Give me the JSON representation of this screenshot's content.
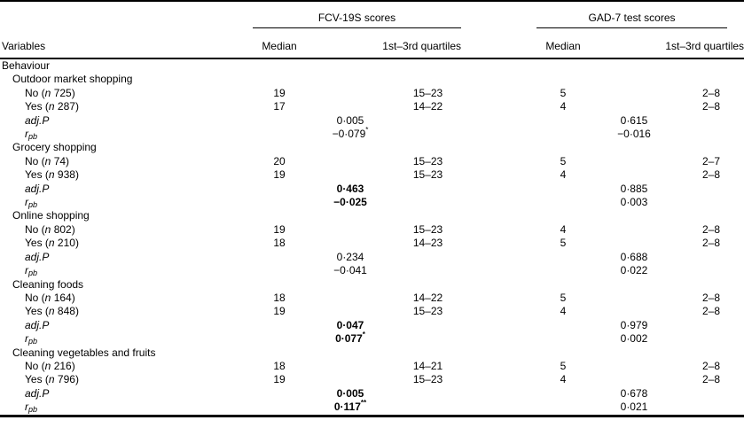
{
  "header": {
    "variables": "Variables",
    "fcv_label": "FCV-19S scores",
    "gad_label": "GAD-7 test scores",
    "median": "Median",
    "quartiles": "1st–3rd quartiles"
  },
  "section_title": "Behaviour",
  "stat_labels": {
    "n_label": "n",
    "adjp": "adj.P",
    "r": "r",
    "r_sub": "pb"
  },
  "sections": [
    {
      "title": "Outdoor market shopping",
      "rows": [
        {
          "answer": "No",
          "n": "725",
          "fcv_median": "19",
          "fcv_quartiles": "15–23",
          "gad_median": "5",
          "gad_quartiles": "2–8"
        },
        {
          "answer": "Yes",
          "n": "287",
          "fcv_median": "17",
          "fcv_quartiles": "14–22",
          "gad_median": "4",
          "gad_quartiles": "2–8"
        }
      ],
      "adjp": {
        "fcv": "0·005",
        "fcv_sup": "",
        "fcv_bold": false,
        "gad": "0·615",
        "gad_sup": ""
      },
      "rpb": {
        "fcv": "−0·079",
        "fcv_sup": "*",
        "fcv_bold": false,
        "gad": "−0·016",
        "gad_sup": ""
      }
    },
    {
      "title": "Grocery shopping",
      "rows": [
        {
          "answer": "No",
          "n": "74",
          "fcv_median": "20",
          "fcv_quartiles": "15–23",
          "gad_median": "5",
          "gad_quartiles": "2–7"
        },
        {
          "answer": "Yes",
          "n": "938",
          "fcv_median": "19",
          "fcv_quartiles": "15–23",
          "gad_median": "4",
          "gad_quartiles": "2–8"
        }
      ],
      "adjp": {
        "fcv": "0·463",
        "fcv_sup": "",
        "fcv_bold": true,
        "gad": "0·885",
        "gad_sup": ""
      },
      "rpb": {
        "fcv": "−0·025",
        "fcv_sup": "",
        "fcv_bold": true,
        "gad": "0·003",
        "gad_sup": ""
      }
    },
    {
      "title": "Online shopping",
      "rows": [
        {
          "answer": "No",
          "n": "802",
          "fcv_median": "19",
          "fcv_quartiles": "15–23",
          "gad_median": "4",
          "gad_quartiles": "2–8"
        },
        {
          "answer": "Yes",
          "n": "210",
          "fcv_median": "18",
          "fcv_quartiles": "14–23",
          "gad_median": "5",
          "gad_quartiles": "2–8"
        }
      ],
      "adjp": {
        "fcv": "0·234",
        "fcv_sup": "",
        "fcv_bold": false,
        "gad": "0·688",
        "gad_sup": ""
      },
      "rpb": {
        "fcv": "−0·041",
        "fcv_sup": "",
        "fcv_bold": false,
        "gad": "0·022",
        "gad_sup": ""
      }
    },
    {
      "title": "Cleaning foods",
      "rows": [
        {
          "answer": "No",
          "n": "164",
          "fcv_median": "18",
          "fcv_quartiles": "14–22",
          "gad_median": "5",
          "gad_quartiles": "2–8"
        },
        {
          "answer": "Yes",
          "n": "848",
          "fcv_median": "19",
          "fcv_quartiles": "15–23",
          "gad_median": "4",
          "gad_quartiles": "2–8"
        }
      ],
      "adjp": {
        "fcv": "0·047",
        "fcv_sup": "",
        "fcv_bold": true,
        "gad": "0·979",
        "gad_sup": ""
      },
      "rpb": {
        "fcv": "0·077",
        "fcv_sup": "*",
        "fcv_bold": true,
        "gad": "0·002",
        "gad_sup": ""
      }
    },
    {
      "title": "Cleaning vegetables and fruits",
      "rows": [
        {
          "answer": "No",
          "n": "216",
          "fcv_median": "18",
          "fcv_quartiles": "14–21",
          "gad_median": "5",
          "gad_quartiles": "2–8"
        },
        {
          "answer": "Yes",
          "n": "796",
          "fcv_median": "19",
          "fcv_quartiles": "15–23",
          "gad_median": "4",
          "gad_quartiles": "2–8"
        }
      ],
      "adjp": {
        "fcv": "0·005",
        "fcv_sup": "",
        "fcv_bold": true,
        "gad": "0·678",
        "gad_sup": ""
      },
      "rpb": {
        "fcv": "0·117",
        "fcv_sup": "**",
        "fcv_bold": true,
        "gad": "0·021",
        "gad_sup": ""
      }
    }
  ]
}
